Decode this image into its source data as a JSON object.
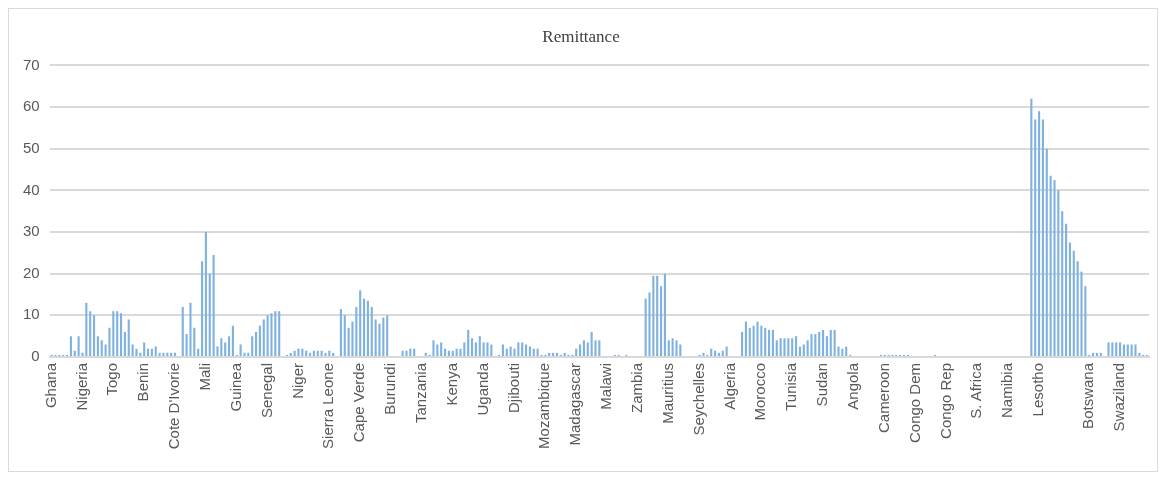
{
  "chart_data": {
    "type": "bar",
    "title": "Remittance",
    "categories": [
      "Ghana",
      null,
      null,
      null,
      null,
      null,
      null,
      null,
      "Nigeria",
      null,
      null,
      null,
      null,
      null,
      null,
      null,
      "Togo",
      null,
      null,
      null,
      null,
      null,
      null,
      null,
      "Benin",
      null,
      null,
      null,
      null,
      null,
      null,
      null,
      "Cote D'Ivorie",
      null,
      null,
      null,
      null,
      null,
      null,
      null,
      "Mali",
      null,
      null,
      null,
      null,
      null,
      null,
      null,
      "Guinea",
      null,
      null,
      null,
      null,
      null,
      null,
      null,
      "Senegal",
      null,
      null,
      null,
      null,
      null,
      null,
      null,
      "Niger",
      null,
      null,
      null,
      null,
      null,
      null,
      null,
      "Sierra Leone",
      null,
      null,
      null,
      null,
      null,
      null,
      null,
      "Cape Verde",
      null,
      null,
      null,
      null,
      null,
      null,
      null,
      "Burundi",
      null,
      null,
      null,
      null,
      null,
      null,
      null,
      "Tanzania",
      null,
      null,
      null,
      null,
      null,
      null,
      null,
      "Kenya",
      null,
      null,
      null,
      null,
      null,
      null,
      null,
      "Uganda",
      null,
      null,
      null,
      null,
      null,
      null,
      null,
      "Djibouti",
      null,
      null,
      null,
      null,
      null,
      null,
      null,
      "Mozambique",
      null,
      null,
      null,
      null,
      null,
      null,
      null,
      "Madagascar",
      null,
      null,
      null,
      null,
      null,
      null,
      null,
      "Malawi",
      null,
      null,
      null,
      null,
      null,
      null,
      null,
      "Zambia",
      null,
      null,
      null,
      null,
      null,
      null,
      null,
      "Mauritius",
      null,
      null,
      null,
      null,
      null,
      null,
      null,
      "Seychelles",
      null,
      null,
      null,
      null,
      null,
      null,
      null,
      "Algeria",
      null,
      null,
      null,
      null,
      null,
      null,
      null,
      "Morocco",
      null,
      null,
      null,
      null,
      null,
      null,
      null,
      "Tunisia",
      null,
      null,
      null,
      null,
      null,
      null,
      null,
      "Sudan",
      null,
      null,
      null,
      null,
      null,
      null,
      null,
      "Angola",
      null,
      null,
      null,
      null,
      null,
      null,
      null,
      "Cameroon",
      null,
      null,
      null,
      null,
      null,
      null,
      null,
      "Congo Dem",
      null,
      null,
      null,
      null,
      null,
      null,
      null,
      "Congo Rep",
      null,
      null,
      null,
      null,
      null,
      null,
      null,
      "S. Africa",
      null,
      null,
      null,
      null,
      null,
      null,
      null,
      "Namibia",
      null,
      null,
      null,
      null,
      null,
      null,
      null,
      "Lesotho",
      null,
      null,
      null,
      null,
      null,
      null,
      null,
      null,
      null,
      null,
      null,
      null,
      "Botswana",
      null,
      null,
      null,
      null,
      null,
      null,
      null,
      "Swaziland",
      null,
      null,
      null,
      null,
      null,
      null,
      null
    ],
    "values": [
      0.5,
      0.5,
      0.5,
      0.5,
      0.5,
      5,
      1.5,
      5,
      1,
      13,
      11,
      10,
      5,
      4,
      3,
      7,
      11,
      11,
      10.5,
      6,
      9,
      3,
      2,
      1,
      3.5,
      2,
      2,
      2.5,
      1,
      1,
      1,
      1,
      1,
      0,
      12,
      5.5,
      13,
      7,
      2,
      23,
      30,
      20,
      24.5,
      2.5,
      4.5,
      3.5,
      5,
      7.5,
      0.5,
      3,
      1,
      1,
      5,
      6,
      7.5,
      9,
      10,
      10.5,
      11,
      11,
      0,
      0.5,
      1,
      1.5,
      2,
      2,
      1.5,
      1,
      1.5,
      1.5,
      1.5,
      1,
      1.5,
      1,
      0,
      11.5,
      10,
      7,
      8.5,
      12,
      16,
      14,
      13.5,
      12,
      9,
      8,
      9.5,
      10,
      0,
      0,
      0,
      1.5,
      1.5,
      2,
      2,
      0,
      0,
      1,
      0.5,
      4,
      3,
      3.5,
      2,
      1.5,
      1.5,
      2,
      2,
      3.5,
      6.5,
      4.5,
      3.5,
      5,
      3.5,
      3.5,
      3,
      0,
      0.5,
      3,
      2,
      2.5,
      2,
      3.5,
      3.5,
      3,
      2.5,
      2,
      2,
      0.5,
      0.5,
      1,
      1,
      1,
      0.5,
      1,
      0.5,
      0.5,
      2,
      3,
      4,
      3.5,
      6,
      4,
      4,
      0,
      0,
      0,
      0.5,
      0.5,
      0,
      0.5,
      0,
      0,
      0,
      0,
      14,
      15.5,
      19.5,
      19.5,
      17,
      20,
      4,
      4.5,
      4,
      3,
      0,
      0,
      0,
      0,
      0.5,
      1,
      0.5,
      2,
      1.5,
      1,
      1.5,
      2.5,
      0,
      0,
      0,
      6,
      8.5,
      7,
      7.5,
      8.5,
      7.5,
      7,
      6.5,
      6.5,
      4,
      4.5,
      4.5,
      4.5,
      4.5,
      5,
      2.5,
      3,
      4,
      5.5,
      5.5,
      6,
      6.5,
      5,
      6.5,
      6.5,
      2.5,
      2,
      2.5,
      0.5,
      0,
      0,
      0,
      0,
      0,
      0,
      0,
      0.5,
      0.5,
      0.5,
      0.5,
      0.5,
      0.5,
      0.5,
      0.5,
      0,
      0,
      0,
      0,
      0,
      0,
      0.5,
      0,
      0,
      0,
      0,
      0,
      0,
      0,
      0,
      0,
      0,
      0,
      0,
      0,
      0,
      0,
      0,
      0,
      0,
      0,
      0,
      0,
      0,
      0,
      0,
      62,
      57,
      59,
      57,
      50,
      43.5,
      42.5,
      40,
      35,
      32,
      27.5,
      25.5,
      23,
      20.5,
      17,
      0.5,
      1,
      1,
      1,
      0,
      3.5,
      3.5,
      3.5,
      3.5,
      3,
      3,
      3,
      3,
      1,
      0.5,
      0.5
    ],
    "color": "#7fb2e0",
    "ylim": [
      0,
      70
    ],
    "yticks": [
      0,
      10,
      20,
      30,
      40,
      50,
      60,
      70
    ],
    "grid": "y",
    "legend": false
  }
}
